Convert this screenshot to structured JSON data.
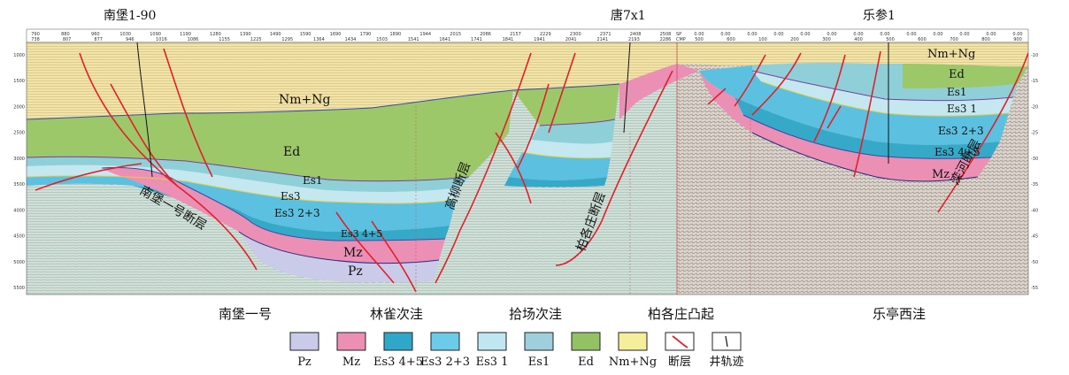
{
  "wells": [
    {
      "id": "w1",
      "name": "南堡1-90"
    },
    {
      "id": "w2",
      "name": "唐7x1"
    },
    {
      "id": "w3",
      "name": "乐参1"
    }
  ],
  "layer_labels": {
    "nm_ng_1": "Nm+Ng",
    "ed_1": "Ed",
    "es1_1": "Es1",
    "es3_1_1": "Es3",
    "es3_23_1": "Es3 2+3",
    "es3_45_1": "Es3 4+5",
    "mz_1": "Mz",
    "pz_1": "Pz",
    "nm_ng_2": "Nm+Ng",
    "ed_2": "Ed",
    "es1_2": "Es1",
    "es3_1_2": "Es3 1",
    "es3_23_2": "Es3 2+3",
    "es3_45_2": "Es3 4+5",
    "mz_2": "Mz"
  },
  "fault_labels": {
    "f1": "南堡一号断层",
    "f2": "高柳断层",
    "f3": "柏各庄断层",
    "f4": "滦河断层"
  },
  "regions": [
    "南堡一号",
    "林雀次洼",
    "拾场次洼",
    "柏各庄凸起",
    "乐亭西洼"
  ],
  "legend": [
    {
      "key": "pz",
      "label": "Pz",
      "color": "#c9cbe8"
    },
    {
      "key": "mz",
      "label": "Mz",
      "color": "#ec8fb5"
    },
    {
      "key": "es3_45",
      "label": "Es3 4+5",
      "color": "#2fa7c9"
    },
    {
      "key": "es3_23",
      "label": "Es3 2+3",
      "color": "#6ccbe8"
    },
    {
      "key": "es3_1",
      "label": "Es3 1",
      "color": "#bfe6f1"
    },
    {
      "key": "es1",
      "label": "Es1",
      "color": "#9fcfdc"
    },
    {
      "key": "ed",
      "label": "Ed",
      "color": "#93c265"
    },
    {
      "key": "nm_ng",
      "label": "Nm+Ng",
      "color": "#f5ee9a"
    },
    {
      "key": "fault",
      "label": "断层",
      "color": "#e0202a"
    },
    {
      "key": "well",
      "label": "井轨迹",
      "color": "#111111"
    }
  ],
  "axis": {
    "top_ticks_a": [
      "790",
      "880",
      "960",
      "1030",
      "1090",
      "1190",
      "1280",
      "1390",
      "1490",
      "1590",
      "1690",
      "1790",
      "1890",
      "1944",
      "2015",
      "2086",
      "2157",
      "2229",
      "2300",
      "2371",
      "2408",
      "2508"
    ],
    "top_ticks_b": [
      "738",
      "807",
      "877",
      "946",
      "1016",
      "1086",
      "1155",
      "1225",
      "1295",
      "1364",
      "1434",
      "1503",
      "1541",
      "1641",
      "1741",
      "1841",
      "1941",
      "2041",
      "2141",
      "2193",
      "2286"
    ],
    "sp_label": "SP",
    "cmp_label": "CMP",
    "top_ticks_c": [
      "0.00",
      "0.00",
      "0.00",
      "0.00",
      "0.00",
      "0.00",
      "0.00",
      "0.00",
      "0.00",
      "0.00",
      "0.00",
      "0.00",
      "0.00"
    ],
    "top_ticks_d": [
      "500",
      "600",
      "100",
      "200",
      "300",
      "400",
      "500",
      "600",
      "700",
      "800",
      "900"
    ],
    "left_ticks": [
      "1000",
      "1500",
      "2000",
      "2500",
      "3000",
      "3500",
      "4000",
      "4500",
      "5000",
      "5500"
    ],
    "right_ticks": [
      "-10",
      "-15",
      "-20",
      "-25",
      "-30",
      "-35",
      "-40",
      "-45",
      "-50",
      "-55"
    ]
  },
  "colors": {
    "nm_ng": "#f2e3a6",
    "ed": "#9cc86a",
    "es1": "#8fcfd8",
    "es3_1": "#c5e8f0",
    "es3_23": "#5cc1e0",
    "es3_45": "#36a9c8",
    "mz": "#ec8fb5",
    "pz": "#c9cbe8",
    "basement_left": "#cfe0d8",
    "basement_right": "#d9d3cc",
    "fault": "#e0202a",
    "boundary": "#3a4aa8"
  }
}
